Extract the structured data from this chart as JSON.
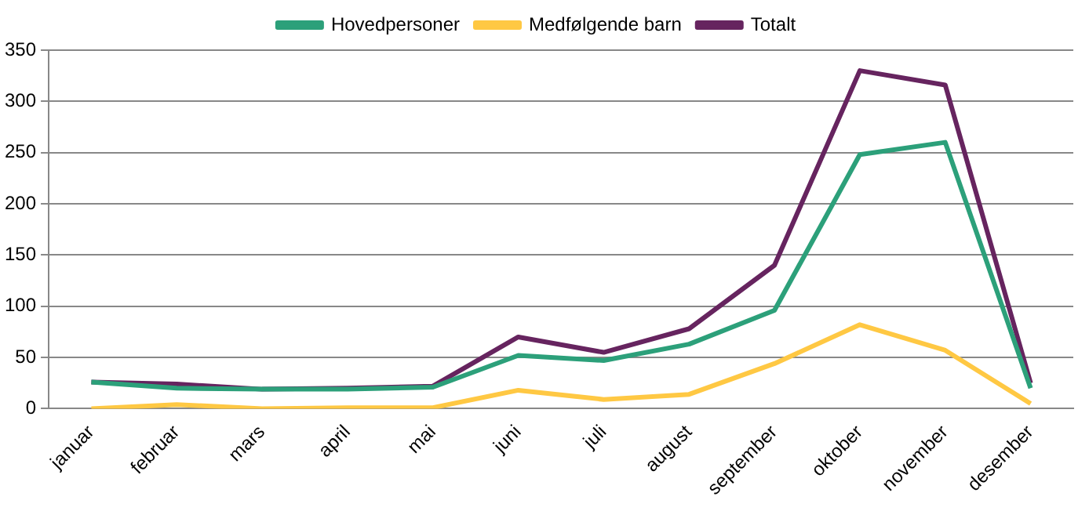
{
  "chart_data": {
    "type": "line",
    "categories": [
      "januar",
      "februar",
      "mars",
      "april",
      "mai",
      "juni",
      "juli",
      "august",
      "september",
      "oktober",
      "november",
      "desember"
    ],
    "series": [
      {
        "name": "Hovedpersoner",
        "color": "#2ca07a",
        "values": [
          26,
          20,
          19,
          19,
          21,
          52,
          47,
          63,
          96,
          248,
          260,
          20
        ]
      },
      {
        "name": "Medfølgende barn",
        "color": "#ffc843",
        "values": [
          0,
          4,
          0,
          1,
          1,
          18,
          9,
          14,
          44,
          82,
          57,
          5
        ]
      },
      {
        "name": "Totalt",
        "color": "#66245f",
        "values": [
          26,
          24,
          19,
          20,
          22,
          70,
          55,
          78,
          140,
          330,
          316,
          25
        ]
      }
    ],
    "ylim": [
      0,
      350
    ],
    "yticks": [
      0,
      50,
      100,
      150,
      200,
      250,
      300,
      350
    ],
    "grid": "y",
    "legend": "top",
    "marker": "none"
  }
}
